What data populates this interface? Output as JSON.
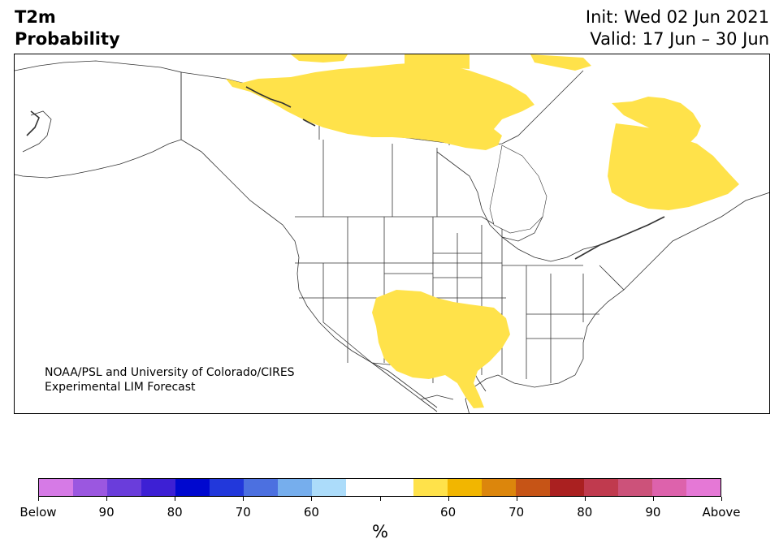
{
  "header": {
    "variable": "T2m",
    "product": "Probability",
    "init": "Init: Wed 02 Jun 2021",
    "valid": "Valid: 17 Jun – 30 Jun"
  },
  "credit": {
    "line1": "NOAA/PSL and University of Colorado/CIRES",
    "line2": "Experimental LIM Forecast"
  },
  "map": {
    "region": "North America",
    "fill_color": "#ffe24a",
    "border_color": "#333333"
  },
  "colorbar": {
    "colors": [
      "#d67ae6",
      "#9b57e0",
      "#6a3ddb",
      "#3d20d4",
      "#0008cf",
      "#2238db",
      "#4c70e0",
      "#76aeed",
      "#acdcfa",
      "#ffffff",
      "#ffffff",
      "#ffe24a",
      "#f2b600",
      "#dc860c",
      "#c65416",
      "#aa2020",
      "#c03a4e",
      "#cc527a",
      "#dd62ac",
      "#e578d6"
    ],
    "ticks": [
      {
        "label": "Below",
        "pos": 0
      },
      {
        "label": "90",
        "pos": 1
      },
      {
        "label": "80",
        "pos": 2
      },
      {
        "label": "70",
        "pos": 3
      },
      {
        "label": "60",
        "pos": 4
      },
      {
        "label": "",
        "pos": 5
      },
      {
        "label": "60",
        "pos": 6
      },
      {
        "label": "70",
        "pos": 7
      },
      {
        "label": "80",
        "pos": 8
      },
      {
        "label": "90",
        "pos": 9
      },
      {
        "label": "Above",
        "pos": 10
      }
    ],
    "unit": "%"
  }
}
